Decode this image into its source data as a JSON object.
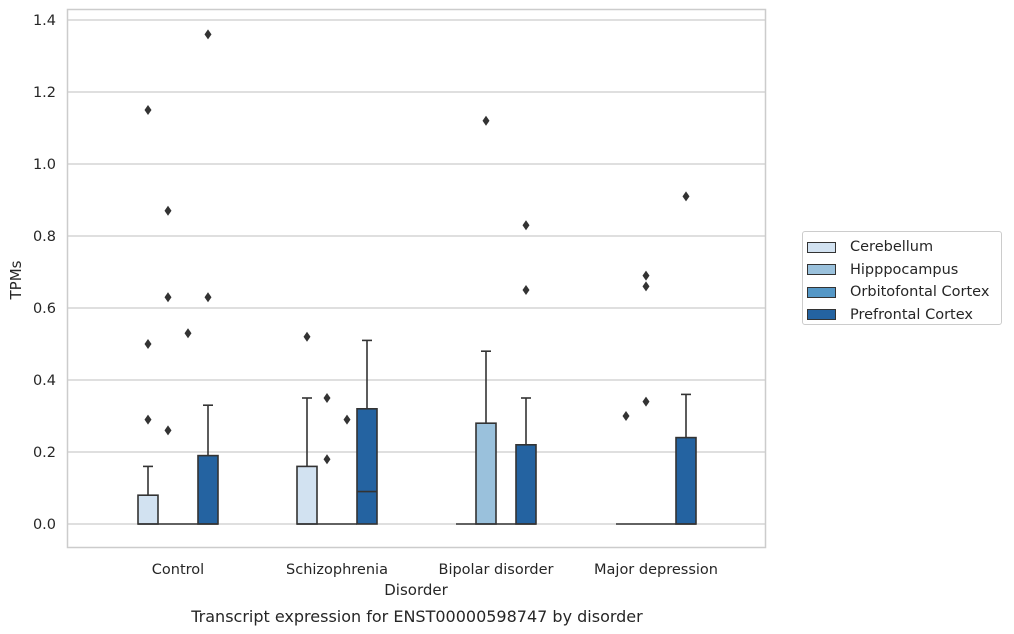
{
  "chart_data": {
    "type": "box",
    "title": "Transcript expression for ENST00000598747 by disorder",
    "xlabel": "Disorder",
    "ylabel": "TPMs",
    "ylim": [
      -0.065,
      1.405
    ],
    "yticks": [
      "0.0",
      "0.2",
      "0.4",
      "0.6",
      "0.8",
      "1.0",
      "1.2",
      "1.4"
    ],
    "ytick_values": [
      0,
      0.2,
      0.4,
      0.6,
      0.8,
      1.0,
      1.2,
      1.4
    ],
    "grid": "horizontal",
    "legend_position": "right-outside",
    "categories": [
      "Control",
      "Schizophrenia",
      "Bipolar disorder",
      "Major depression"
    ],
    "series": [
      {
        "name": "Cerebellum",
        "color": "#d2e2f1",
        "boxes": [
          {
            "min": 0,
            "q1": 0,
            "median": 0,
            "q3": 0.08,
            "max": 0.16,
            "outliers": [
              0.29,
              0.5,
              1.15
            ]
          },
          {
            "min": 0,
            "q1": 0,
            "median": 0,
            "q3": 0.16,
            "max": 0.35,
            "outliers": [
              0.52
            ]
          },
          {
            "min": 0,
            "q1": 0,
            "median": 0,
            "q3": 0,
            "max": 0,
            "outliers": []
          },
          {
            "min": 0,
            "q1": 0,
            "median": 0,
            "q3": 0,
            "max": 0,
            "outliers": [
              0.3
            ]
          }
        ]
      },
      {
        "name": "Hipppocampus",
        "color": "#9ac1dc",
        "boxes": [
          {
            "min": 0,
            "q1": 0,
            "median": 0,
            "q3": 0,
            "max": 0,
            "outliers": [
              0.26,
              0.63,
              0.87
            ]
          },
          {
            "min": 0,
            "q1": 0,
            "median": 0,
            "q3": 0,
            "max": 0,
            "outliers": [
              0.18,
              0.35
            ]
          },
          {
            "min": 0,
            "q1": 0,
            "median": 0,
            "q3": 0.28,
            "max": 0.48,
            "outliers": [
              1.12
            ]
          },
          {
            "min": 0,
            "q1": 0,
            "median": 0,
            "q3": 0,
            "max": 0,
            "outliers": [
              0.34,
              0.66,
              0.69
            ]
          }
        ]
      },
      {
        "name": "Orbitofontal Cortex",
        "color": "#5497c6",
        "boxes": [
          {
            "min": 0,
            "q1": 0,
            "median": 0,
            "q3": 0,
            "max": 0,
            "outliers": [
              0.53
            ]
          },
          {
            "min": 0,
            "q1": 0,
            "median": 0,
            "q3": 0,
            "max": 0,
            "outliers": [
              0.29
            ]
          },
          {
            "min": 0,
            "q1": 0,
            "median": 0,
            "q3": 0,
            "max": 0,
            "outliers": []
          },
          {
            "min": 0,
            "q1": 0,
            "median": 0,
            "q3": 0,
            "max": 0,
            "outliers": []
          }
        ]
      },
      {
        "name": "Prefrontal Cortex",
        "color": "#2463a1",
        "boxes": [
          {
            "min": 0,
            "q1": 0,
            "median": 0,
            "q3": 0.19,
            "max": 0.33,
            "outliers": [
              0.63,
              1.36
            ]
          },
          {
            "min": 0,
            "q1": 0,
            "median": 0.09,
            "q3": 0.32,
            "max": 0.51,
            "outliers": []
          },
          {
            "min": 0,
            "q1": 0,
            "median": 0,
            "q3": 0.22,
            "max": 0.35,
            "outliers": [
              0.65,
              0.83
            ]
          },
          {
            "min": 0,
            "q1": 0,
            "median": 0,
            "q3": 0.24,
            "max": 0.36,
            "outliers": [
              0.91
            ]
          }
        ]
      }
    ]
  }
}
